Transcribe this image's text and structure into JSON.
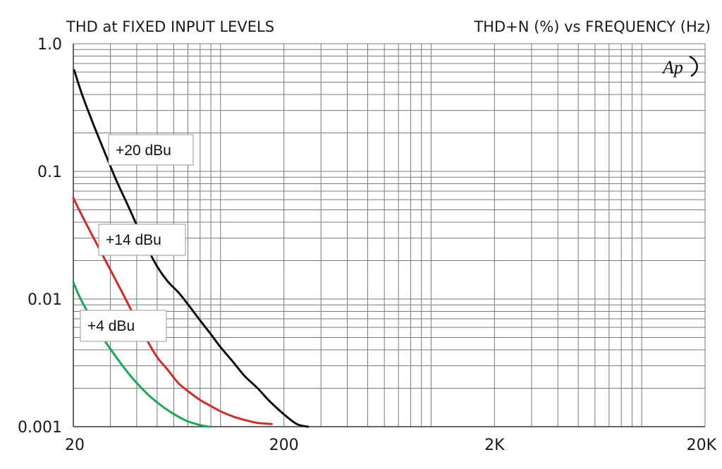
{
  "chart_data": {
    "type": "line",
    "title": "THD at FIXED INPUT LEVELS",
    "subtitle": "THD+N (%) vs FREQUENCY (Hz)",
    "logo_text": "Ap",
    "x_scale": "log",
    "y_scale": "log",
    "xlim": [
      20,
      20000
    ],
    "ylim": [
      0.001,
      1.0
    ],
    "x_ticks": [
      {
        "value": 20,
        "label": "20"
      },
      {
        "value": 200,
        "label": "200"
      },
      {
        "value": 2000,
        "label": "2K"
      },
      {
        "value": 20000,
        "label": "20K"
      }
    ],
    "y_ticks": [
      {
        "value": 1.0,
        "label": "1.0"
      },
      {
        "value": 0.1,
        "label": "0.1"
      },
      {
        "value": 0.01,
        "label": "0.01"
      },
      {
        "value": 0.001,
        "label": "0.001"
      }
    ],
    "grid": true,
    "series": [
      {
        "name": "+20 dBu",
        "color": "#111111",
        "points": [
          [
            20.2,
            0.62
          ],
          [
            22,
            0.4
          ],
          [
            25,
            0.23
          ],
          [
            28,
            0.145
          ],
          [
            32,
            0.085
          ],
          [
            36,
            0.056
          ],
          [
            40,
            0.038
          ],
          [
            45,
            0.025
          ],
          [
            50,
            0.018
          ],
          [
            56,
            0.0138
          ],
          [
            63,
            0.0113
          ],
          [
            70,
            0.0091
          ],
          [
            80,
            0.0068
          ],
          [
            90,
            0.0053
          ],
          [
            100,
            0.0042
          ],
          [
            115,
            0.0032
          ],
          [
            130,
            0.0025
          ],
          [
            150,
            0.002
          ],
          [
            170,
            0.0016
          ],
          [
            200,
            0.00125
          ],
          [
            230,
            0.00105
          ],
          [
            260,
            0.001
          ]
        ]
      },
      {
        "name": "+14 dBu",
        "color": "#d42a2a",
        "points": [
          [
            20,
            0.062
          ],
          [
            22,
            0.045
          ],
          [
            25,
            0.03
          ],
          [
            28,
            0.021
          ],
          [
            32,
            0.0138
          ],
          [
            36,
            0.0095
          ],
          [
            40,
            0.0067
          ],
          [
            45,
            0.0047
          ],
          [
            50,
            0.0035
          ],
          [
            56,
            0.0028
          ],
          [
            63,
            0.0022
          ],
          [
            70,
            0.0019
          ],
          [
            80,
            0.00162
          ],
          [
            90,
            0.00145
          ],
          [
            100,
            0.00132
          ],
          [
            115,
            0.0012
          ],
          [
            130,
            0.00113
          ],
          [
            150,
            0.00107
          ],
          [
            175,
            0.00105
          ]
        ]
      },
      {
        "name": "+4 dBu",
        "color": "#1aaa55",
        "points": [
          [
            20,
            0.0135
          ],
          [
            22,
            0.0095
          ],
          [
            25,
            0.0066
          ],
          [
            28,
            0.0048
          ],
          [
            32,
            0.0035
          ],
          [
            36,
            0.0027
          ],
          [
            40,
            0.0022
          ],
          [
            45,
            0.0018
          ],
          [
            50,
            0.00155
          ],
          [
            56,
            0.00135
          ],
          [
            63,
            0.0012
          ],
          [
            70,
            0.0011
          ],
          [
            80,
            0.00103
          ],
          [
            88,
            0.001
          ]
        ]
      }
    ],
    "annotations": [
      {
        "text": "+20 dBu",
        "series": "+20 dBu"
      },
      {
        "text": "+14 dBu",
        "series": "+14 dBu"
      },
      {
        "text": "+4 dBu",
        "series": "+4 dBu"
      }
    ]
  }
}
